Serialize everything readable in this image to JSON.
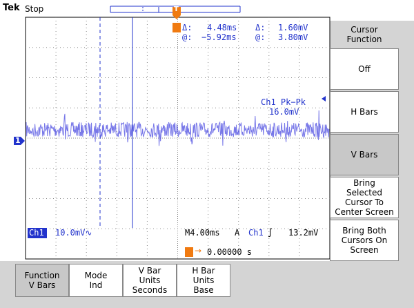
{
  "status_bar": {
    "brand": "Tek",
    "state": "Stop"
  },
  "cursor_readout": {
    "delta_time_label": "Δ:",
    "delta_time": "4.48ms",
    "delta_volt_label": "Δ:",
    "delta_volt": "1.60mV",
    "at_time_label": "@:",
    "at_time": "−5.92ms",
    "at_volt_label": "@:",
    "at_volt": "3.80mV"
  },
  "measurement": {
    "name": "Ch1 Pk−Pk",
    "value": "16.0mV"
  },
  "channel_marker": "1",
  "trigger_marker": "T",
  "bottom_readout": {
    "channel": "Ch1",
    "scale": "10.0mV∿",
    "timebase": "M4.00ms",
    "mode": "A",
    "trigger_channel": "Ch1",
    "trigger_level": "13.2mV",
    "trigger_position": "0.00000 s"
  },
  "side_menu": [
    {
      "lines": [
        "Cursor",
        "Function"
      ]
    },
    {
      "lines": [
        "Off"
      ]
    },
    {
      "lines": [
        "H Bars"
      ]
    },
    {
      "lines": [
        "V Bars"
      ]
    },
    {
      "lines": [
        "Bring",
        "Selected",
        "Cursor To",
        "Center Screen"
      ]
    },
    {
      "lines": [
        "Bring Both",
        "Cursors On",
        "Screen"
      ]
    }
  ],
  "bottom_menu": [
    {
      "lines": [
        "Function",
        "V Bars"
      ]
    },
    {
      "lines": [
        "Mode",
        "Ind"
      ]
    },
    {
      "lines": [
        "V Bar",
        "Units",
        "Seconds"
      ]
    },
    {
      "lines": [
        "H Bar",
        "Units",
        "Base"
      ]
    }
  ]
}
